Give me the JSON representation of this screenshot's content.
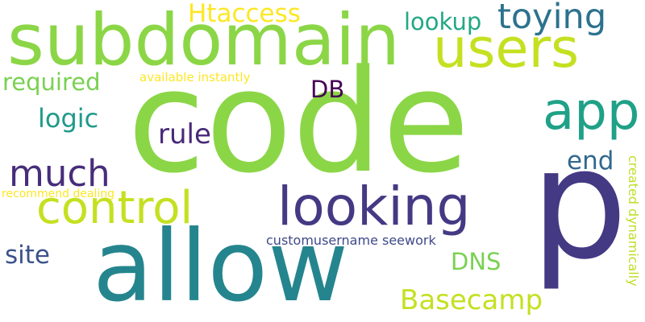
{
  "words": [
    {
      "text": "code",
      "color": "#8bd646"
    },
    {
      "text": "p",
      "color": "#443983"
    },
    {
      "text": "allow",
      "color": "#25858e"
    },
    {
      "text": "subdomain",
      "color": "#8bd646"
    },
    {
      "text": "users",
      "color": "#c5e021"
    },
    {
      "text": "looking",
      "color": "#443983"
    },
    {
      "text": "control",
      "color": "#c5e021"
    },
    {
      "text": "app",
      "color": "#1fa187"
    },
    {
      "text": "toying",
      "color": "#2c728e"
    },
    {
      "text": "much",
      "color": "#472d7b"
    },
    {
      "text": "Basecamp",
      "color": "#c5e021"
    },
    {
      "text": "Htaccess",
      "color": "#fde725"
    },
    {
      "text": "lookup",
      "color": "#22a884"
    },
    {
      "text": "required",
      "color": "#7ad151"
    },
    {
      "text": "logic",
      "color": "#1f9a8a"
    },
    {
      "text": "rule",
      "color": "#482878"
    },
    {
      "text": "DB",
      "color": "#440154"
    },
    {
      "text": "end",
      "color": "#31688e"
    },
    {
      "text": "site",
      "color": "#3b528b"
    },
    {
      "text": "DNS",
      "color": "#7ad151"
    },
    {
      "text": "customusername seework",
      "color": "#3e4989"
    },
    {
      "text": "available instantly",
      "color": "#fde725"
    },
    {
      "text": "recommend dealing",
      "color": "#fde725"
    },
    {
      "text": "created dynamically",
      "color": "#bddf26"
    }
  ]
}
